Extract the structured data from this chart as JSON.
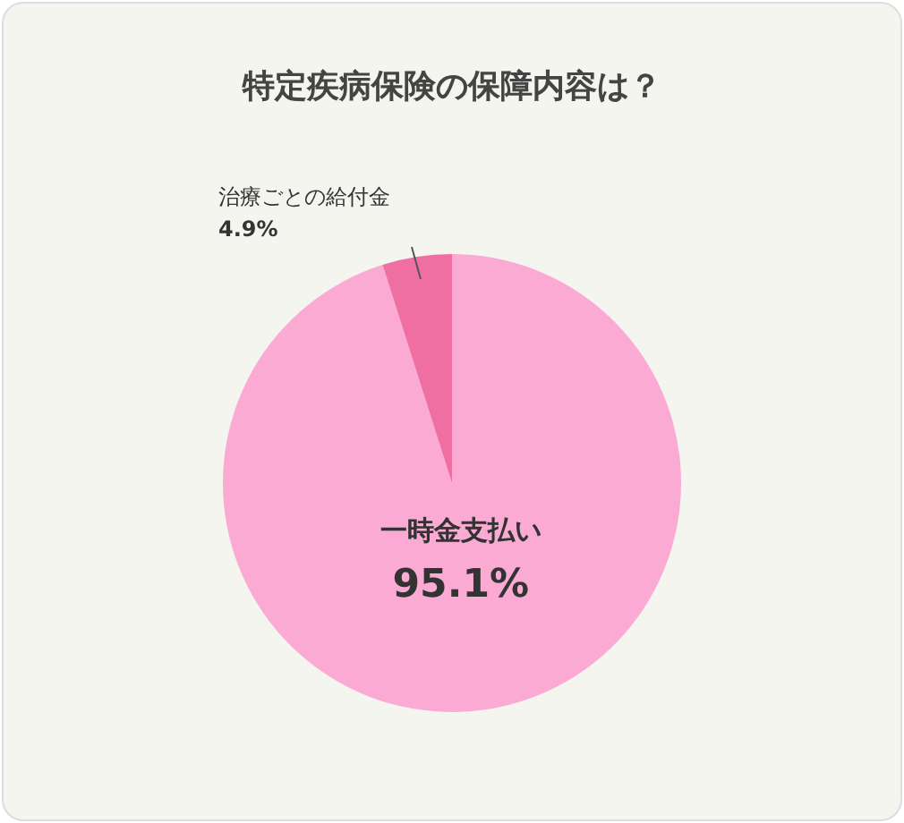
{
  "chart_data": {
    "type": "pie",
    "title": "特定疾病保険の保障内容は？",
    "categories": [
      "一時金支払い",
      "治療ごとの給付金"
    ],
    "values": [
      95.1,
      4.9
    ],
    "colors": [
      "#fbaad4",
      "#f06fa3"
    ],
    "value_labels": [
      "95.1%",
      "4.9%"
    ],
    "legend": false
  }
}
